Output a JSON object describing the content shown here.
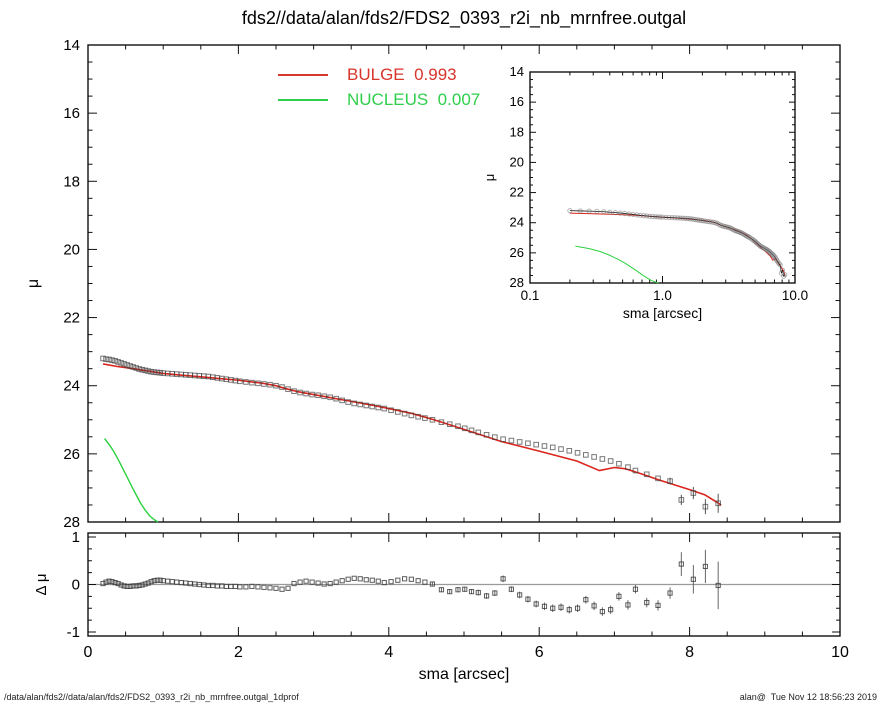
{
  "title": "fds2//data/alan/fds2/FDS2_0393_r2i_nb_mrnfree.outgal",
  "legend": {
    "items": [
      {
        "label": "BULGE  0.993",
        "color": "#d8352b"
      },
      {
        "label": "NUCLEUS  0.007",
        "color": "#2ecf4b"
      }
    ]
  },
  "footer": {
    "left": "/data/alan/fds2//data/alan/fds2/FDS2_0393_r2i_nb_mrnfree.outgal_1dprof",
    "right": "alan@  Tue Nov 12 18:56:23 2019"
  },
  "chart_data": [
    {
      "id": "main",
      "type": "scatter",
      "xlim": [
        0,
        10
      ],
      "ylim": [
        28,
        14
      ],
      "ylabel": "μ",
      "y_ticks": [
        "14",
        "16",
        "18",
        "20",
        "22",
        "24",
        "26",
        "28"
      ],
      "x_ticks": [
        "0",
        "2",
        "4",
        "6",
        "8",
        "10"
      ],
      "grid": false,
      "series": [
        {
          "name": "observed",
          "kind": "scatter",
          "marker": "open-square",
          "color": "#3f3f3f",
          "x": [
            0.2,
            0.24,
            0.28,
            0.32,
            0.36,
            0.4,
            0.44,
            0.48,
            0.52,
            0.56,
            0.6,
            0.64,
            0.68,
            0.72,
            0.76,
            0.8,
            0.84,
            0.88,
            0.92,
            0.96,
            1.0,
            1.06,
            1.12,
            1.18,
            1.24,
            1.3,
            1.36,
            1.42,
            1.48,
            1.54,
            1.6,
            1.66,
            1.72,
            1.78,
            1.84,
            1.9,
            1.96,
            2.02,
            2.1,
            2.18,
            2.26,
            2.34,
            2.42,
            2.5,
            2.58,
            2.66,
            2.74,
            2.82,
            2.9,
            2.98,
            3.06,
            3.14,
            3.22,
            3.3,
            3.38,
            3.46,
            3.54,
            3.62,
            3.7,
            3.78,
            3.86,
            3.94,
            4.03,
            4.12,
            4.21,
            4.3,
            4.39,
            4.48,
            4.58,
            4.7,
            4.81,
            4.92,
            5.01,
            5.1,
            5.19,
            5.3,
            5.41,
            5.52,
            5.63,
            5.74,
            5.85,
            5.96,
            6.07,
            6.18,
            6.29,
            6.4,
            6.51,
            6.62,
            6.73,
            6.84,
            6.95,
            7.06,
            7.18,
            7.28,
            7.43,
            7.58,
            7.74,
            7.89,
            8.05,
            8.21,
            8.38
          ],
          "mu": [
            23.2,
            23.22,
            23.23,
            23.25,
            23.27,
            23.3,
            23.33,
            23.36,
            23.39,
            23.42,
            23.45,
            23.48,
            23.51,
            23.53,
            23.55,
            23.57,
            23.59,
            23.6,
            23.61,
            23.62,
            23.63,
            23.64,
            23.65,
            23.66,
            23.67,
            23.68,
            23.69,
            23.7,
            23.71,
            23.72,
            23.73,
            23.75,
            23.77,
            23.79,
            23.81,
            23.83,
            23.85,
            23.87,
            23.89,
            23.91,
            23.93,
            23.95,
            23.97,
            24.0,
            24.04,
            24.1,
            24.16,
            24.2,
            24.23,
            24.26,
            24.28,
            24.31,
            24.34,
            24.38,
            24.43,
            24.48,
            24.52,
            24.55,
            24.58,
            24.61,
            24.64,
            24.67,
            24.72,
            24.77,
            24.82,
            24.87,
            24.91,
            24.95,
            25.0,
            25.07,
            25.13,
            25.19,
            25.25,
            25.31,
            25.37,
            25.44,
            25.51,
            25.57,
            25.61,
            25.65,
            25.69,
            25.73,
            25.77,
            25.81,
            25.86,
            25.91,
            25.97,
            26.03,
            26.09,
            26.15,
            26.21,
            26.29,
            26.39,
            26.49,
            26.6,
            26.72,
            26.8,
            27.35,
            27.15,
            27.55,
            27.45
          ],
          "mu_err": [
            0,
            0,
            0,
            0,
            0,
            0,
            0,
            0,
            0,
            0,
            0,
            0,
            0,
            0,
            0,
            0,
            0,
            0,
            0,
            0,
            0,
            0,
            0,
            0,
            0,
            0,
            0,
            0,
            0,
            0,
            0,
            0,
            0,
            0,
            0,
            0,
            0,
            0,
            0,
            0,
            0,
            0,
            0,
            0,
            0,
            0,
            0,
            0,
            0,
            0,
            0,
            0,
            0,
            0,
            0,
            0,
            0,
            0,
            0,
            0,
            0,
            0,
            0,
            0,
            0,
            0,
            0,
            0,
            0,
            0,
            0,
            0,
            0,
            0,
            0,
            0,
            0,
            0,
            0,
            0,
            0,
            0,
            0,
            0,
            0,
            0,
            0,
            0,
            0,
            0,
            0,
            0,
            0,
            0,
            0,
            0,
            0.1,
            0.15,
            0.18,
            0.22,
            0.28
          ]
        },
        {
          "name": "BULGE",
          "kind": "line",
          "weight": 0.993,
          "color": "#db241b",
          "x": [
            0.2,
            0.4,
            0.6,
            0.8,
            1.0,
            1.25,
            1.5,
            1.75,
            2.0,
            2.3,
            2.5,
            2.62,
            2.8,
            3.0,
            3.2,
            3.5,
            3.8,
            4.0,
            4.3,
            4.6,
            5.0,
            5.5,
            6.0,
            6.5,
            6.8,
            7.0,
            7.15,
            7.35,
            7.6,
            8.0,
            8.2,
            8.42
          ],
          "mu": [
            23.36,
            23.44,
            23.5,
            23.57,
            23.64,
            23.69,
            23.74,
            23.79,
            23.84,
            23.92,
            24.0,
            24.08,
            24.18,
            24.26,
            24.34,
            24.46,
            24.58,
            24.67,
            24.81,
            25.0,
            25.28,
            25.64,
            25.92,
            26.21,
            26.49,
            26.4,
            26.44,
            26.58,
            26.77,
            27.05,
            27.2,
            27.5
          ]
        },
        {
          "name": "NUCLEUS",
          "kind": "line",
          "weight": 0.007,
          "color": "#2bd13e",
          "x": [
            0.22,
            0.28,
            0.34,
            0.4,
            0.46,
            0.52,
            0.58,
            0.64,
            0.7,
            0.76,
            0.82,
            0.88,
            0.93
          ],
          "mu": [
            25.55,
            25.72,
            25.92,
            26.16,
            26.42,
            26.68,
            26.95,
            27.2,
            27.45,
            27.65,
            27.82,
            27.93,
            28.0
          ]
        }
      ]
    },
    {
      "id": "inset",
      "type": "scatter",
      "xscale": "log",
      "xlim": [
        0.1,
        10
      ],
      "ylim": [
        28,
        14
      ],
      "xlabel": "sma [arcsec]",
      "ylabel": "μ",
      "x_tick_labels": [
        "0.1",
        "1.0",
        "10.0"
      ],
      "x_tick_values": [
        0.1,
        1.0,
        10.0
      ],
      "y_ticks": [
        "14",
        "16",
        "18",
        "20",
        "22",
        "24",
        "26",
        "28"
      ],
      "series_from": "main",
      "grid": false
    },
    {
      "id": "residuals",
      "type": "scatter",
      "xlim": [
        0,
        10
      ],
      "ylim": [
        -1,
        1
      ],
      "xlabel": "sma [arcsec]",
      "ylabel": "Δ μ",
      "y_ticks": [
        "1",
        "0",
        "-1"
      ],
      "y_tick_values": [
        1,
        0,
        -1
      ],
      "x_ticks": [
        "0",
        "2",
        "4",
        "6",
        "8",
        "10"
      ],
      "x_tick_values": [
        0,
        2,
        4,
        6,
        8,
        10
      ],
      "zero_line": true,
      "marker": "open-square",
      "color": "#333333",
      "x": [
        0.2,
        0.24,
        0.28,
        0.32,
        0.36,
        0.4,
        0.44,
        0.48,
        0.52,
        0.56,
        0.6,
        0.64,
        0.68,
        0.72,
        0.76,
        0.8,
        0.84,
        0.88,
        0.92,
        0.96,
        1.0,
        1.06,
        1.12,
        1.18,
        1.24,
        1.3,
        1.36,
        1.42,
        1.48,
        1.54,
        1.6,
        1.66,
        1.72,
        1.78,
        1.84,
        1.9,
        1.96,
        2.02,
        2.1,
        2.18,
        2.26,
        2.34,
        2.42,
        2.5,
        2.58,
        2.66,
        2.74,
        2.82,
        2.9,
        2.98,
        3.06,
        3.14,
        3.22,
        3.3,
        3.38,
        3.46,
        3.54,
        3.62,
        3.7,
        3.78,
        3.86,
        3.94,
        4.03,
        4.12,
        4.21,
        4.3,
        4.39,
        4.48,
        4.58,
        4.7,
        4.81,
        4.92,
        5.01,
        5.1,
        5.19,
        5.3,
        5.41,
        5.52,
        5.63,
        5.74,
        5.85,
        5.96,
        6.07,
        6.18,
        6.29,
        6.4,
        6.51,
        6.62,
        6.73,
        6.84,
        6.95,
        7.06,
        7.18,
        7.28,
        7.43,
        7.58,
        7.74,
        7.89,
        8.05,
        8.21,
        8.38
      ],
      "dmu": [
        0.02,
        0.05,
        0.07,
        0.06,
        0.04,
        0.02,
        -0.01,
        -0.03,
        -0.04,
        -0.04,
        -0.03,
        -0.03,
        -0.02,
        -0.01,
        0.01,
        0.03,
        0.06,
        0.08,
        0.09,
        0.09,
        0.08,
        0.07,
        0.06,
        0.05,
        0.04,
        0.03,
        0.02,
        0.01,
        0.0,
        -0.01,
        -0.02,
        -0.02,
        -0.03,
        -0.03,
        -0.04,
        -0.04,
        -0.04,
        -0.05,
        -0.05,
        -0.04,
        -0.05,
        -0.06,
        -0.07,
        -0.08,
        -0.1,
        -0.08,
        0.02,
        0.05,
        0.07,
        0.05,
        0.03,
        0.01,
        0.02,
        0.05,
        0.08,
        0.11,
        0.13,
        0.12,
        0.1,
        0.09,
        0.07,
        0.04,
        0.06,
        0.09,
        0.12,
        0.11,
        0.08,
        0.05,
        0.01,
        -0.11,
        -0.15,
        -0.11,
        -0.1,
        -0.15,
        -0.17,
        -0.24,
        -0.18,
        0.12,
        -0.1,
        -0.22,
        -0.31,
        -0.41,
        -0.46,
        -0.5,
        -0.48,
        -0.53,
        -0.5,
        -0.32,
        -0.45,
        -0.57,
        -0.53,
        -0.25,
        -0.43,
        -0.1,
        -0.38,
        -0.44,
        -0.18,
        0.43,
        0.11,
        0.38,
        -0.02
      ],
      "err": [
        0,
        0,
        0,
        0,
        0,
        0,
        0,
        0,
        0,
        0,
        0,
        0,
        0,
        0,
        0,
        0,
        0,
        0,
        0,
        0,
        0,
        0,
        0,
        0,
        0,
        0,
        0,
        0,
        0,
        0,
        0,
        0,
        0,
        0,
        0,
        0,
        0,
        0,
        0,
        0,
        0,
        0,
        0,
        0,
        0,
        0,
        0,
        0,
        0,
        0,
        0,
        0,
        0,
        0,
        0,
        0,
        0,
        0,
        0,
        0,
        0,
        0,
        0,
        0,
        0,
        0,
        0,
        0,
        0.04,
        0.05,
        0.05,
        0.05,
        0.05,
        0.05,
        0.06,
        0.06,
        0.06,
        0.07,
        0.06,
        0.07,
        0.07,
        0.07,
        0.08,
        0.08,
        0.08,
        0.08,
        0.08,
        0.08,
        0.09,
        0.09,
        0.09,
        0.09,
        0.1,
        0.09,
        0.1,
        0.11,
        0.12,
        0.25,
        0.3,
        0.35,
        0.5
      ]
    }
  ]
}
